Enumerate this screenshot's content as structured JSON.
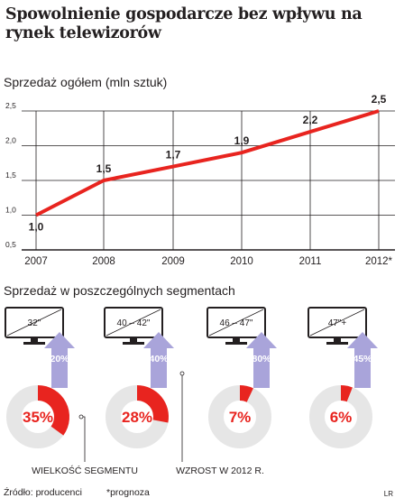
{
  "title": "Spowolnienie gospodarcze bez wpływu na rynek telewizorów",
  "chart_data": [
    {
      "type": "line",
      "subtitle": "Sprzedaż ogółem (mln sztuk)",
      "x": [
        "2007",
        "2008",
        "2009",
        "2010",
        "2011",
        "2012*"
      ],
      "values": [
        1.0,
        1.5,
        1.7,
        1.9,
        2.2,
        2.5
      ],
      "value_labels": [
        "1,0",
        "1,5",
        "1,7",
        "1,9",
        "2,2",
        "2,5"
      ],
      "yticks": [
        "2,5",
        "2,0",
        "1,5",
        "1,0",
        "0,5"
      ],
      "ylim": [
        0.5,
        2.5
      ],
      "grid": true,
      "line_color": "#e8241f"
    },
    {
      "type": "pie",
      "subtitle": "Sprzedaż w poszczególnych segmentach",
      "segments": [
        {
          "screen_label": "32\"",
          "share": 35,
          "share_label": "35%",
          "growth_label": "20%"
        },
        {
          "screen_label": "40 – 42\"",
          "share": 28,
          "share_label": "28%",
          "growth_label": "40%"
        },
        {
          "screen_label": "46 – 47\"",
          "share": 7,
          "share_label": "7%",
          "growth_label": "80%"
        },
        {
          "screen_label": "47\"+",
          "share": 6,
          "share_label": "6%",
          "growth_label": "45%"
        }
      ],
      "annotations": {
        "share": "WIELKOŚĆ SEGMENTU",
        "growth": "WZROST W 2012 R."
      },
      "colors": {
        "share": "#e8241f",
        "rest": "#e6e6e6",
        "arrow": "#a9a4da"
      }
    }
  ],
  "footer": {
    "source": "Źródło: producenci",
    "note": "*prognoza",
    "brand": "LR"
  }
}
